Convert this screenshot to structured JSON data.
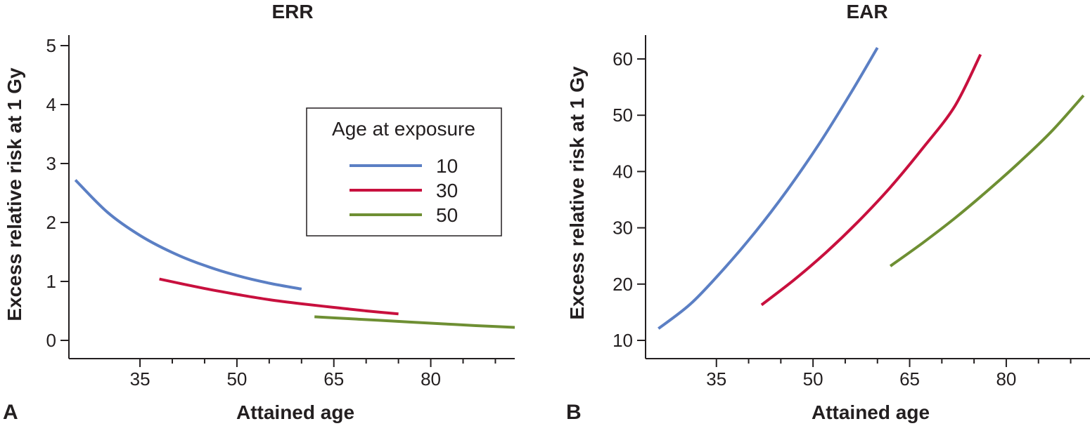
{
  "chart_data": [
    {
      "panel": "A",
      "type": "line",
      "title": "ERR",
      "xlabel": "Attained age",
      "ylabel": "Excess relative risk at 1 Gy",
      "xlim": [
        24,
        93
      ],
      "ylim": [
        0,
        5
      ],
      "xticks": [
        35,
        50,
        65,
        80
      ],
      "xminor": [
        40,
        45,
        55,
        60,
        70,
        75,
        85,
        90
      ],
      "yticks": [
        0,
        1,
        2,
        3,
        4,
        5
      ],
      "legend": {
        "title": "Age at exposure",
        "entries": [
          "10",
          "30",
          "50"
        ],
        "position": "upper-right-center"
      },
      "series": [
        {
          "name": "10",
          "color": "#5b7fc4",
          "x": [
            25,
            30,
            35,
            40,
            45,
            50,
            55,
            60
          ],
          "y": [
            2.72,
            2.17,
            1.78,
            1.49,
            1.27,
            1.1,
            0.97,
            0.87
          ]
        },
        {
          "name": "30",
          "color": "#c8103e",
          "x": [
            38,
            45,
            50,
            55,
            60,
            65,
            70,
            75
          ],
          "y": [
            1.04,
            0.88,
            0.78,
            0.69,
            0.62,
            0.56,
            0.5,
            0.45
          ]
        },
        {
          "name": "50",
          "color": "#6e8f33",
          "x": [
            62,
            67,
            72,
            77,
            82,
            87,
            93
          ],
          "y": [
            0.4,
            0.37,
            0.34,
            0.31,
            0.28,
            0.25,
            0.22
          ]
        }
      ]
    },
    {
      "panel": "B",
      "type": "line",
      "title": "EAR",
      "xlabel": "Attained age",
      "ylabel": "Excess relative risk at 1 Gy",
      "xlim": [
        24,
        93
      ],
      "ylim": [
        8,
        64
      ],
      "xticks": [
        35,
        50,
        65,
        80
      ],
      "xminor": [
        40,
        45,
        55,
        60,
        70,
        75,
        85,
        90
      ],
      "yticks": [
        10,
        20,
        30,
        40,
        50,
        60
      ],
      "series": [
        {
          "name": "10",
          "color": "#5b7fc4",
          "x": [
            26,
            31,
            36,
            41,
            46,
            51,
            56,
            60
          ],
          "y": [
            12.1,
            16.5,
            22.5,
            29.2,
            36.7,
            45.0,
            54.2,
            62.0
          ]
        },
        {
          "name": "30",
          "color": "#c8103e",
          "x": [
            42,
            47,
            52,
            57,
            62,
            67,
            72,
            76
          ],
          "y": [
            16.3,
            20.7,
            25.6,
            31.1,
            37.2,
            44.1,
            51.6,
            60.8
          ]
        },
        {
          "name": "50",
          "color": "#6e8f33",
          "x": [
            62,
            67,
            72,
            77,
            82,
            87,
            92
          ],
          "y": [
            23.2,
            27.3,
            31.7,
            36.5,
            41.6,
            47.1,
            53.5
          ]
        }
      ]
    }
  ]
}
